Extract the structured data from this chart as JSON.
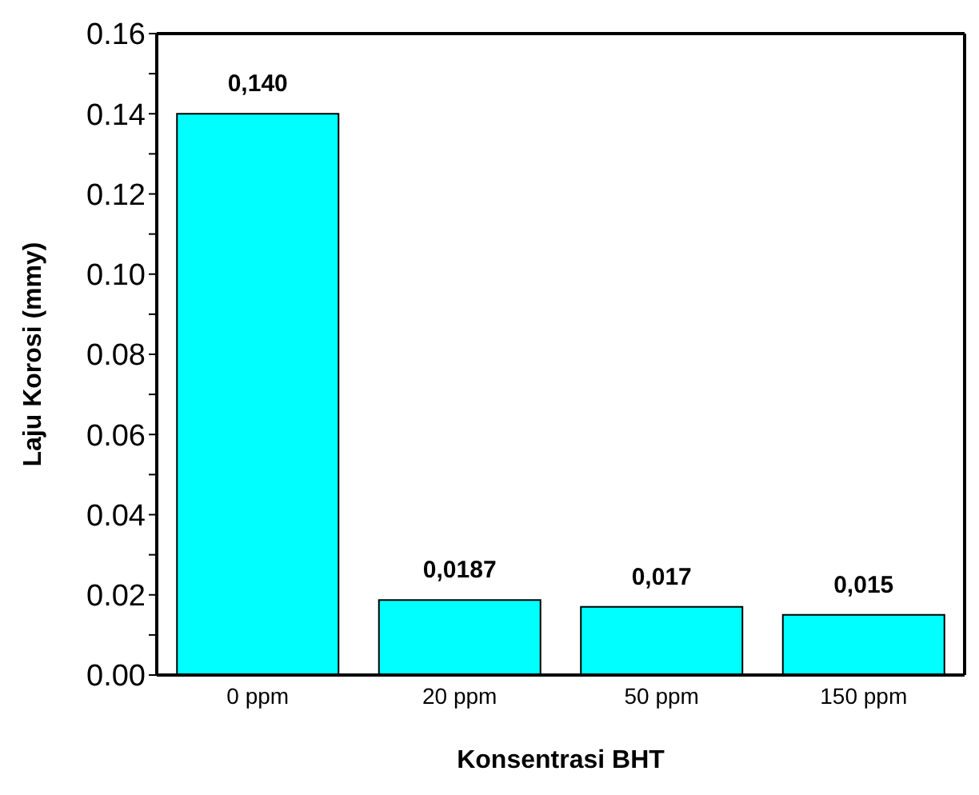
{
  "chart_data": {
    "type": "bar",
    "xlabel": "Konsentrasi BHT",
    "ylabel": "Laju Korosi (mmy)",
    "categories": [
      "0 ppm",
      "20 ppm",
      "50 ppm",
      "150 ppm"
    ],
    "values": [
      0.14,
      0.0187,
      0.017,
      0.015
    ],
    "value_labels": [
      "0,140",
      "0,0187",
      "0,017",
      "0,015"
    ],
    "color": "#00ffff",
    "ylim": [
      0,
      0.16
    ],
    "yticks": [
      {
        "value": 0,
        "label": "0.00"
      },
      {
        "value": 0.01,
        "label": null
      },
      {
        "value": 0.02,
        "label": "0.02"
      },
      {
        "value": 0.03,
        "label": null
      },
      {
        "value": 0.04,
        "label": "0.04"
      },
      {
        "value": 0.05,
        "label": null
      },
      {
        "value": 0.06,
        "label": "0.06"
      },
      {
        "value": 0.07,
        "label": null
      },
      {
        "value": 0.08,
        "label": "0.08"
      },
      {
        "value": 0.09,
        "label": null
      },
      {
        "value": 0.1,
        "label": "0.10"
      },
      {
        "value": 0.11,
        "label": null
      },
      {
        "value": 0.12,
        "label": "0.12"
      },
      {
        "value": 0.13,
        "label": null
      },
      {
        "value": 0.14,
        "label": "0.14"
      },
      {
        "value": 0.15,
        "label": null
      },
      {
        "value": 0.16,
        "label": "0.16"
      }
    ],
    "grid": false,
    "legend": false
  }
}
